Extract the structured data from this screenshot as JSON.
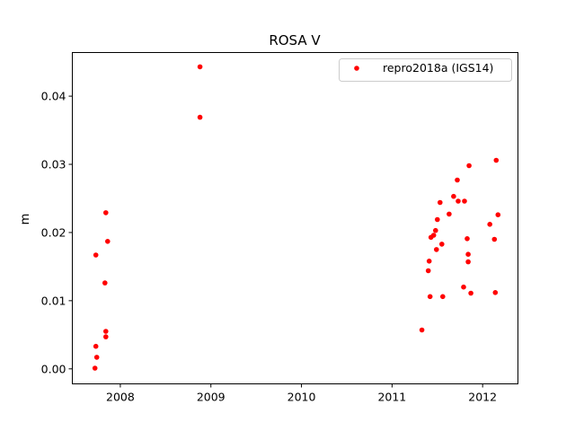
{
  "chart_data": {
    "type": "scatter",
    "title": "ROSA V",
    "xlabel": "",
    "ylabel": "m",
    "xlim": [
      2007.47,
      2012.39
    ],
    "ylim": [
      -0.0022,
      0.0464
    ],
    "xticks": [
      2008,
      2009,
      2010,
      2011,
      2012
    ],
    "yticks": [
      0.0,
      0.01,
      0.02,
      0.03,
      0.04
    ],
    "ytick_labels": [
      "0.00",
      "0.01",
      "0.02",
      "0.03",
      "0.04"
    ],
    "grid": false,
    "legend_position": "upper right",
    "series": [
      {
        "name": "repro2018a (IGS14)",
        "color": "#ff0000",
        "marker": "circle",
        "points": [
          [
            2007.72,
            0.0001
          ],
          [
            2007.74,
            0.0017
          ],
          [
            2007.73,
            0.0033
          ],
          [
            2007.73,
            0.0167
          ],
          [
            2007.84,
            0.0047
          ],
          [
            2007.84,
            0.0055
          ],
          [
            2007.83,
            0.0126
          ],
          [
            2007.86,
            0.0187
          ],
          [
            2007.84,
            0.0229
          ],
          [
            2008.88,
            0.0369
          ],
          [
            2008.88,
            0.0443
          ],
          [
            2011.33,
            0.0057
          ],
          [
            2011.4,
            0.0144
          ],
          [
            2011.41,
            0.0158
          ],
          [
            2011.42,
            0.0106
          ],
          [
            2011.43,
            0.0193
          ],
          [
            2011.46,
            0.0196
          ],
          [
            2011.48,
            0.0203
          ],
          [
            2011.49,
            0.0175
          ],
          [
            2011.5,
            0.0219
          ],
          [
            2011.53,
            0.0244
          ],
          [
            2011.55,
            0.0183
          ],
          [
            2011.56,
            0.0106
          ],
          [
            2011.63,
            0.0227
          ],
          [
            2011.68,
            0.0253
          ],
          [
            2011.72,
            0.0277
          ],
          [
            2011.73,
            0.0246
          ],
          [
            2011.79,
            0.012
          ],
          [
            2011.8,
            0.0246
          ],
          [
            2011.83,
            0.0191
          ],
          [
            2011.84,
            0.0168
          ],
          [
            2011.84,
            0.0157
          ],
          [
            2011.85,
            0.0298
          ],
          [
            2011.87,
            0.0111
          ],
          [
            2012.08,
            0.0212
          ],
          [
            2012.13,
            0.019
          ],
          [
            2012.14,
            0.0112
          ],
          [
            2012.15,
            0.0306
          ],
          [
            2012.17,
            0.0226
          ]
        ]
      }
    ]
  }
}
